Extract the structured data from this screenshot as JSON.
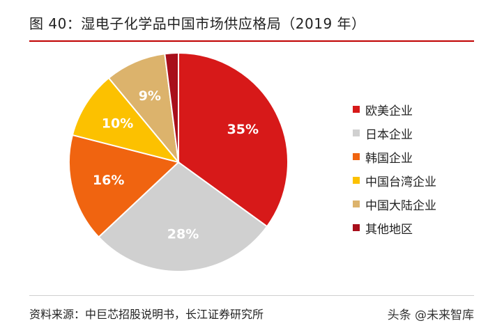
{
  "title": "图 40：湿电子化学品中国市场供应格局（2019 年）",
  "source": "资料来源：中巨芯招股说明书，长江证券研究所",
  "watermark": "头条 @未来智库",
  "chart_data": {
    "type": "pie",
    "categories": [
      "欧美企业",
      "日本企业",
      "韩国企业",
      "中国台湾企业",
      "中国大陆企业",
      "其他地区"
    ],
    "values": [
      35,
      28,
      16,
      10,
      9,
      2
    ],
    "data_labels": [
      "35%",
      "28%",
      "16%",
      "10%",
      "9%",
      ""
    ],
    "colors": [
      "#d71919",
      "#d0d0d0",
      "#f06410",
      "#fcc100",
      "#dcb36c",
      "#a80f1b"
    ],
    "start_angle_deg": 0,
    "direction": "clockwise",
    "legend_position": "right"
  }
}
